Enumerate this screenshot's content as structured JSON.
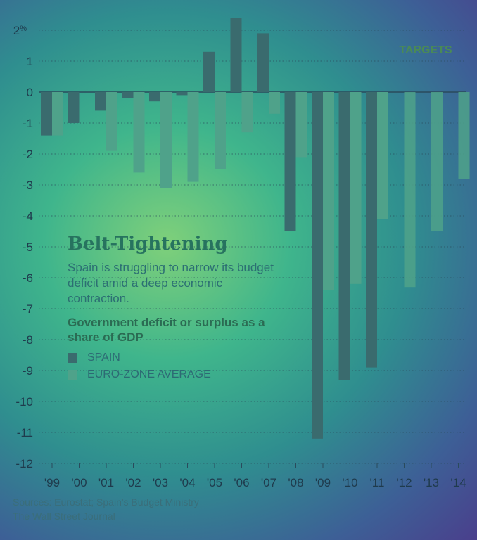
{
  "chart_data": {
    "type": "bar",
    "title": "Belt-Tightening",
    "subtitle": "Spain is struggling to narrow its budget deficit amid a deep economic contraction.",
    "measure": "Government deficit or surplus as a share of GDP",
    "categories": [
      "'99",
      "'00",
      "'01",
      "'02",
      "'03",
      "'04",
      "'05",
      "'06",
      "'07",
      "'08",
      "'09",
      "'10",
      "'11",
      "'12",
      "'13",
      "'14"
    ],
    "series": [
      {
        "name": "SPAIN",
        "values": [
          -1.4,
          -1.0,
          -0.6,
          -0.2,
          -0.3,
          -0.1,
          1.3,
          2.4,
          1.9,
          -4.5,
          -11.2,
          -9.3,
          -8.9,
          null,
          null,
          null
        ]
      },
      {
        "name": "EURO-ZONE AVERAGE",
        "values": [
          -1.4,
          null,
          -1.9,
          -2.6,
          -3.1,
          -2.9,
          -2.5,
          -1.3,
          -0.7,
          -2.1,
          -6.4,
          -6.2,
          -4.1,
          -6.3,
          -4.5,
          -2.8
        ]
      }
    ],
    "target_label": "TARGETS",
    "target_categories": [
      "'12",
      "'13",
      "'14"
    ],
    "y_ticks": [
      "2%",
      "1",
      "0",
      "-1",
      "-2",
      "-3",
      "-4",
      "-5",
      "-6",
      "-7",
      "-8",
      "-9",
      "-10",
      "-11",
      "-12"
    ],
    "ylim": [
      -12,
      2.5
    ],
    "grid": true,
    "legend_placement": "lower-left inside plot",
    "colors": {
      "spain": "#3a6b6e",
      "euro": "#4fa28a"
    }
  },
  "legend": {
    "spain": "SPAIN",
    "euro": "EURO-ZONE AVERAGE"
  },
  "footer": {
    "sources": "Sources: Eurostat; Spain's Budget Ministry",
    "publisher": "The Wall Street Journal"
  }
}
